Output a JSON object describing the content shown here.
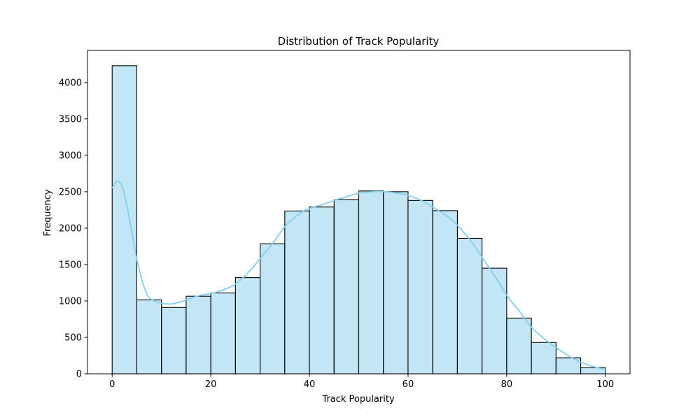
{
  "chart_data": {
    "type": "bar",
    "subtype": "histogram",
    "title": "Distribution of Track Popularity",
    "xlabel": "Track Popularity",
    "ylabel": "Frequency",
    "xlim": [
      -5,
      105
    ],
    "ylim": [
      0,
      4440
    ],
    "x_ticks": [
      0,
      20,
      40,
      60,
      80,
      100
    ],
    "x_tick_labels": [
      "0",
      "20",
      "40",
      "60",
      "80",
      "100"
    ],
    "y_ticks": [
      0,
      500,
      1000,
      1500,
      2000,
      2500,
      3000,
      3500,
      4000
    ],
    "y_tick_labels": [
      "0",
      "500",
      "1000",
      "1500",
      "2000",
      "2500",
      "3000",
      "3500",
      "4000"
    ],
    "bin_edges": [
      0,
      5,
      10,
      15,
      20,
      25,
      30,
      35,
      40,
      45,
      50,
      55,
      60,
      65,
      70,
      75,
      80,
      85,
      90,
      95,
      100
    ],
    "values": [
      4230,
      1015,
      910,
      1065,
      1110,
      1320,
      1785,
      2235,
      2290,
      2390,
      2510,
      2500,
      2380,
      2240,
      1860,
      1450,
      765,
      430,
      220,
      85
    ],
    "kde": {
      "x": [
        0,
        1,
        2,
        3,
        4,
        5,
        6,
        7,
        8,
        10,
        12,
        14,
        16,
        18,
        20,
        22,
        25,
        28,
        30,
        33,
        35,
        38,
        40,
        43,
        45,
        48,
        50,
        53,
        55,
        58,
        60,
        63,
        65,
        68,
        70,
        73,
        75,
        78,
        80,
        83,
        85,
        88,
        90,
        93,
        95,
        98,
        100
      ],
      "y": [
        2550,
        2640,
        2580,
        2300,
        1950,
        1580,
        1300,
        1100,
        1020,
        970,
        960,
        990,
        1040,
        1080,
        1100,
        1140,
        1230,
        1420,
        1580,
        1830,
        2020,
        2200,
        2270,
        2330,
        2380,
        2440,
        2480,
        2500,
        2500,
        2480,
        2450,
        2370,
        2290,
        2160,
        2040,
        1800,
        1600,
        1300,
        1080,
        820,
        640,
        460,
        360,
        230,
        160,
        90,
        60
      ]
    },
    "colors": {
      "bar_fill": "#87ceeb",
      "bar_fill_opacity": 0.5,
      "bar_edge": "#000000",
      "kde_line": "#87ceeb",
      "axes": "#000000",
      "background": "#ffffff"
    },
    "grid": false,
    "legend": "none"
  }
}
